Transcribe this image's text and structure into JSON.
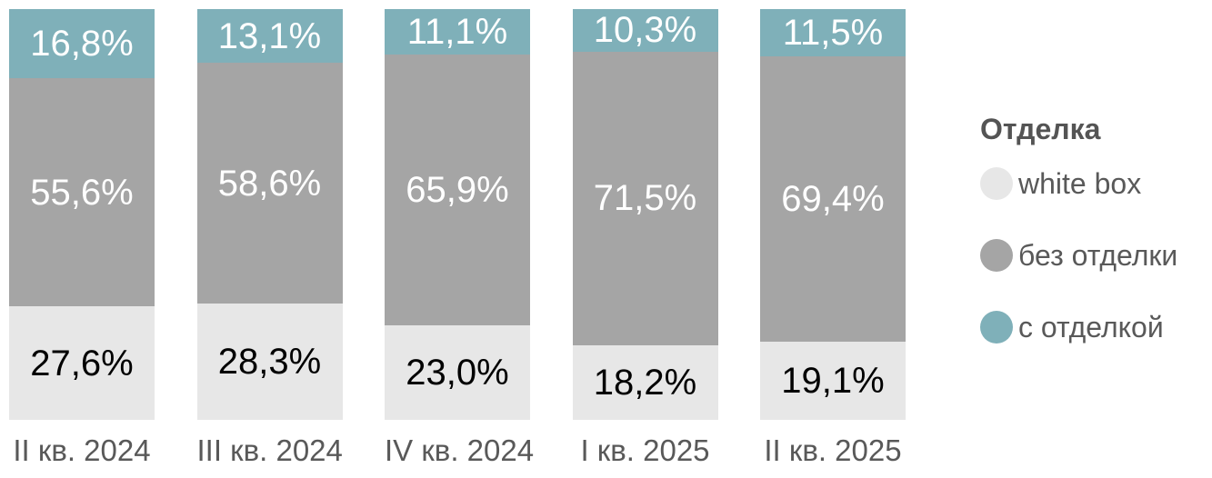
{
  "chart_data": {
    "type": "bar",
    "variant": "stacked-100-percent-column",
    "title": "",
    "xlabel": "",
    "ylabel": "",
    "ylim": [
      0,
      100
    ],
    "grid": false,
    "axis_label_color": "#595959",
    "categories": [
      "II кв. 2024",
      "III кв. 2024",
      "IV кв. 2024",
      "I кв. 2025",
      "II кв. 2025"
    ],
    "series": [
      {
        "name": "white box",
        "color": "#e7e7e7",
        "label_color": "#000000",
        "values": [
          27.6,
          28.3,
          23.0,
          18.2,
          19.1
        ],
        "labels": [
          "27,6%",
          "28,3%",
          "23,0%",
          "18,2%",
          "19,1%"
        ]
      },
      {
        "name": "без отделки",
        "color": "#a5a5a5",
        "label_color": "#ffffff",
        "values": [
          55.6,
          58.6,
          65.9,
          71.5,
          69.4
        ],
        "labels": [
          "55,6%",
          "58,6%",
          "65,9%",
          "71,5%",
          "69,4%"
        ]
      },
      {
        "name": "с отделкой",
        "color": "#7fb0b9",
        "label_color": "#ffffff",
        "values": [
          16.8,
          13.1,
          11.1,
          10.3,
          11.5
        ],
        "labels": [
          "16,8%",
          "13,1%",
          "11,1%",
          "10,3%",
          "11,5%"
        ]
      }
    ],
    "legend": {
      "position": "right",
      "title": "Отделка",
      "items": [
        {
          "label": "white box",
          "color": "#e7e7e7"
        },
        {
          "label": "без отделки",
          "color": "#a5a5a5"
        },
        {
          "label": "с отделкой",
          "color": "#7fb0b9"
        }
      ]
    }
  }
}
